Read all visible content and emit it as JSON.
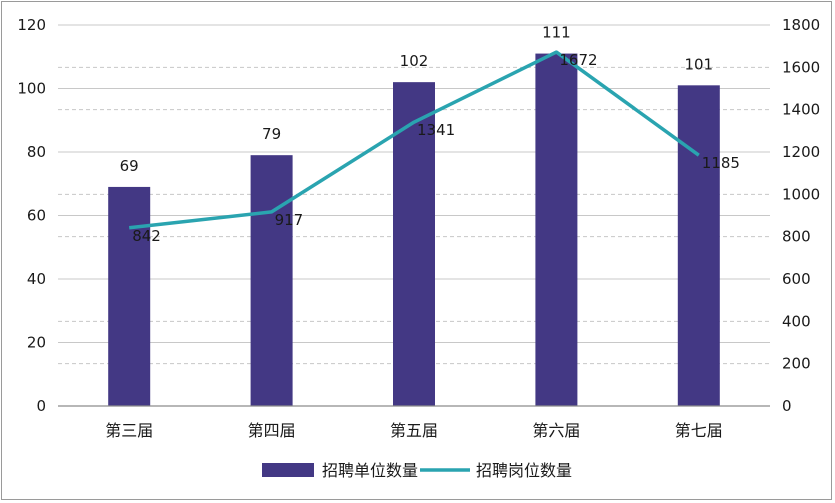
{
  "chart_data": {
    "type": "bar",
    "categories": [
      "第三届",
      "第四届",
      "第五届",
      "第六届",
      "第七届"
    ],
    "series": [
      {
        "name": "招聘单位数量",
        "type": "bar",
        "axis": "left",
        "values": [
          69,
          79,
          102,
          111,
          101
        ],
        "color": "#433884"
      },
      {
        "name": "招聘岗位数量",
        "type": "line",
        "axis": "right",
        "values": [
          842,
          917,
          1341,
          1672,
          1185
        ],
        "color": "#2aa4b0"
      }
    ],
    "y_left": {
      "range": [
        0,
        120
      ],
      "ticks": [
        "0",
        "20",
        "40",
        "60",
        "80",
        "100",
        "120"
      ]
    },
    "y_right": {
      "range": [
        0,
        1800
      ],
      "ticks": [
        "0",
        "200",
        "400",
        "600",
        "800",
        "1000",
        "1200",
        "1400",
        "1600",
        "1800"
      ]
    },
    "bar_labels": [
      "69",
      "79",
      "102",
      "111",
      "101"
    ],
    "line_labels": [
      "842",
      "917",
      "1341",
      "1672",
      "1185"
    ],
    "legend_position": "bottom",
    "grid": true
  }
}
